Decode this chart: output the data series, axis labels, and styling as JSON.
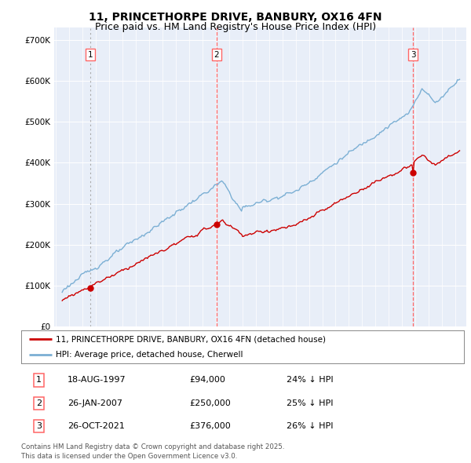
{
  "title": "11, PRINCETHORPE DRIVE, BANBURY, OX16 4FN",
  "subtitle": "Price paid vs. HM Land Registry's House Price Index (HPI)",
  "ylim": [
    0,
    730000
  ],
  "yticks": [
    0,
    100000,
    200000,
    300000,
    400000,
    500000,
    600000,
    700000
  ],
  "ytick_labels": [
    "£0",
    "£100K",
    "£200K",
    "£300K",
    "£400K",
    "£500K",
    "£600K",
    "£700K"
  ],
  "background_color": "#ffffff",
  "plot_bg_color": "#e8eef8",
  "grid_color": "#ffffff",
  "red_line_color": "#cc0000",
  "blue_line_color": "#7bafd4",
  "vline_color_dashed": "#ff6666",
  "vline_color_dotted": "#aaaaaa",
  "sale_dates": [
    1997.63,
    2007.07,
    2021.82
  ],
  "sale_prices": [
    94000,
    250000,
    376000
  ],
  "sale_labels": [
    "1",
    "2",
    "3"
  ],
  "legend_entries": [
    "11, PRINCETHORPE DRIVE, BANBURY, OX16 4FN (detached house)",
    "HPI: Average price, detached house, Cherwell"
  ],
  "table_rows": [
    [
      "1",
      "18-AUG-1997",
      "£94,000",
      "24% ↓ HPI"
    ],
    [
      "2",
      "26-JAN-2007",
      "£250,000",
      "25% ↓ HPI"
    ],
    [
      "3",
      "26-OCT-2021",
      "£376,000",
      "26% ↓ HPI"
    ]
  ],
  "footer": "Contains HM Land Registry data © Crown copyright and database right 2025.\nThis data is licensed under the Open Government Licence v3.0.",
  "title_fontsize": 10,
  "subtitle_fontsize": 9,
  "tick_fontsize": 7.5
}
